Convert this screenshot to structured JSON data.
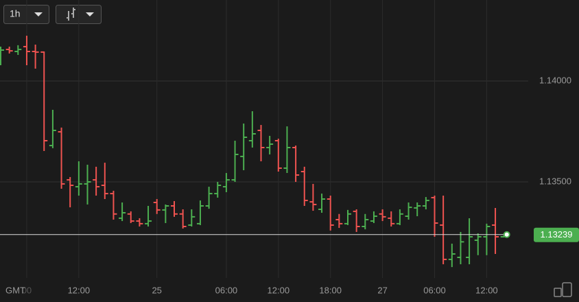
{
  "toolbar": {
    "interval": "1h"
  },
  "chart_data": {
    "type": "ohlc",
    "timezone": "GMT",
    "categories": [
      null,
      null,
      null,
      "00",
      null,
      null,
      null,
      null,
      null,
      "12:00",
      null,
      null,
      null,
      null,
      null,
      null,
      null,
      null,
      "25",
      null,
      null,
      null,
      null,
      null,
      null,
      null,
      "06:00",
      null,
      null,
      null,
      null,
      null,
      "12:00",
      null,
      null,
      null,
      null,
      null,
      "18:00",
      null,
      null,
      null,
      null,
      null,
      "27",
      null,
      null,
      null,
      null,
      null,
      "06:00",
      null,
      null,
      null,
      null,
      null,
      "12:00",
      null,
      null
    ],
    "open": [
      1.14136,
      1.14156,
      1.14146,
      1.1417,
      1.14146,
      1.14143,
      1.1368,
      1.13748,
      1.1351,
      1.13476,
      1.1349,
      1.1351,
      1.13483,
      1.13442,
      1.1332,
      1.13341,
      1.13306,
      1.13293,
      1.13398,
      1.13361,
      1.13381,
      1.13341,
      1.13286,
      1.13293,
      1.13381,
      1.13442,
      1.13476,
      1.1351,
      1.13626,
      1.13704,
      1.13755,
      1.1367,
      1.13704,
      1.13568,
      1.1367,
      1.13551,
      1.13401,
      1.13364,
      1.13415,
      1.13313,
      1.13293,
      1.13354,
      1.13279,
      1.13306,
      1.13341,
      1.1332,
      1.13293,
      1.1333,
      1.13371,
      1.13381,
      1.13422,
      1.13286,
      1.13116,
      1.13126,
      1.13126,
      1.13211,
      1.13228,
      1.13286,
      1.13228
    ],
    "high": [
      1.1417,
      1.1417,
      1.14177,
      1.14224,
      1.1418,
      1.14146,
      1.13857,
      1.13769,
      1.13524,
      1.13602,
      1.13585,
      1.13575,
      1.13595,
      1.13456,
      1.13398,
      1.13354,
      1.1332,
      1.13381,
      1.13415,
      1.13388,
      1.13405,
      1.13364,
      1.13364,
      1.13408,
      1.13476,
      1.135,
      1.13544,
      1.13704,
      1.13789,
      1.1385,
      1.13782,
      1.13728,
      1.13714,
      1.13775,
      1.1368,
      1.13575,
      1.1349,
      1.13442,
      1.13432,
      1.13341,
      1.13361,
      1.13364,
      1.13341,
      1.13354,
      1.13364,
      1.13354,
      1.13364,
      1.13398,
      1.13398,
      1.13425,
      1.13432,
      1.13432,
      1.13194,
      1.13252,
      1.1332,
      1.13245,
      1.13293,
      1.13371,
      1.13245
    ],
    "low": [
      1.14078,
      1.14136,
      1.14129,
      1.14078,
      1.14061,
      1.13653,
      1.13667,
      1.13466,
      1.13374,
      1.13432,
      1.13388,
      1.13432,
      1.13415,
      1.13313,
      1.13306,
      1.13296,
      1.13279,
      1.13279,
      1.13341,
      1.13296,
      1.13327,
      1.13269,
      1.13279,
      1.13286,
      1.13367,
      1.13422,
      1.13449,
      1.135,
      1.13558,
      1.1367,
      1.13602,
      1.13636,
      1.13551,
      1.13544,
      1.135,
      1.13381,
      1.13357,
      1.13347,
      1.13259,
      1.13272,
      1.13286,
      1.13252,
      1.13265,
      1.13296,
      1.13306,
      1.13279,
      1.13286,
      1.13313,
      1.1333,
      1.13364,
      1.13228,
      1.13092,
      1.13078,
      1.13092,
      1.13092,
      1.13137,
      1.13137,
      1.13143,
      1.13225
    ],
    "close": [
      1.14153,
      1.14149,
      1.14156,
      1.14146,
      1.14143,
      1.13704,
      1.13755,
      1.1349,
      1.13483,
      1.1349,
      1.135,
      1.13476,
      1.13442,
      1.13341,
      1.13347,
      1.13306,
      1.13293,
      1.13306,
      1.13361,
      1.13381,
      1.13341,
      1.13279,
      1.13327,
      1.13381,
      1.13442,
      1.13483,
      1.1351,
      1.13636,
      1.13721,
      1.13738,
      1.1367,
      1.13687,
      1.13568,
      1.1367,
      1.13534,
      1.13408,
      1.13388,
      1.13415,
      1.13286,
      1.13293,
      1.13341,
      1.13279,
      1.13313,
      1.1333,
      1.13327,
      1.13293,
      1.13341,
      1.13374,
      1.13381,
      1.13408,
      1.13296,
      1.13116,
      1.13143,
      1.13203,
      1.13228,
      1.13228,
      1.13279,
      1.13228,
      1.13239
    ],
    "up_color": "#4caf50",
    "down_color": "#ef5350",
    "ylim": [
      1.13024,
      1.14401
    ],
    "yticks": [
      {
        "value": 1.135,
        "label": "1.13500"
      },
      {
        "value": 1.14,
        "label": "1.14000"
      }
    ],
    "grid": true,
    "current_price": {
      "value": 1.13239,
      "label": "1.13239"
    }
  }
}
